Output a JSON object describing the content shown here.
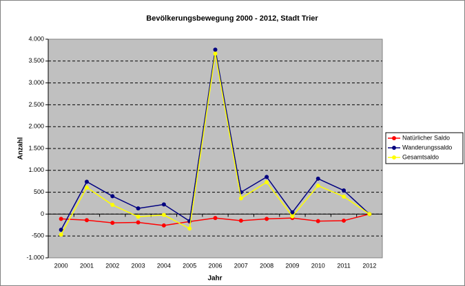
{
  "chart_data": {
    "type": "line",
    "title": "Bevölkerungsbewegung 2000 - 2012, Stadt Trier",
    "x_label": "Jahr",
    "y_label": "Anzahl",
    "categories": [
      "2000",
      "2001",
      "2002",
      "2003",
      "2004",
      "2005",
      "2006",
      "2007",
      "2008",
      "2009",
      "2010",
      "2011",
      "2012"
    ],
    "series": [
      {
        "name": "Natürlicher Saldo",
        "color": "#ff0000",
        "values": [
          -110,
          -140,
          -200,
          -190,
          -260,
          -170,
          -90,
          -150,
          -110,
          -90,
          -160,
          -150,
          0
        ]
      },
      {
        "name": "Wanderungssaldo",
        "color": "#000080",
        "values": [
          -360,
          740,
          410,
          130,
          220,
          -160,
          3760,
          500,
          850,
          40,
          810,
          540,
          0
        ]
      },
      {
        "name": "Gesamtsaldo",
        "color": "#ffff00",
        "values": [
          -470,
          610,
          210,
          -60,
          -20,
          -330,
          3670,
          360,
          730,
          -50,
          650,
          400,
          0
        ]
      }
    ],
    "ylim": [
      -1000,
      4000
    ],
    "yticks": [
      {
        "value": -1000,
        "label": "-1.000"
      },
      -500,
      0,
      500,
      {
        "value": 1000,
        "label": "1.000"
      },
      {
        "value": 1500,
        "label": "1.500"
      },
      {
        "value": 2000,
        "label": "2.000"
      },
      {
        "value": 2500,
        "label": "2.500"
      },
      {
        "value": 3000,
        "label": "3.000"
      },
      {
        "value": 3500,
        "label": "3.500"
      },
      {
        "value": 4000,
        "label": "4.000"
      }
    ],
    "grid": true,
    "legend": "right",
    "plot_background": "#c0c0c0"
  }
}
